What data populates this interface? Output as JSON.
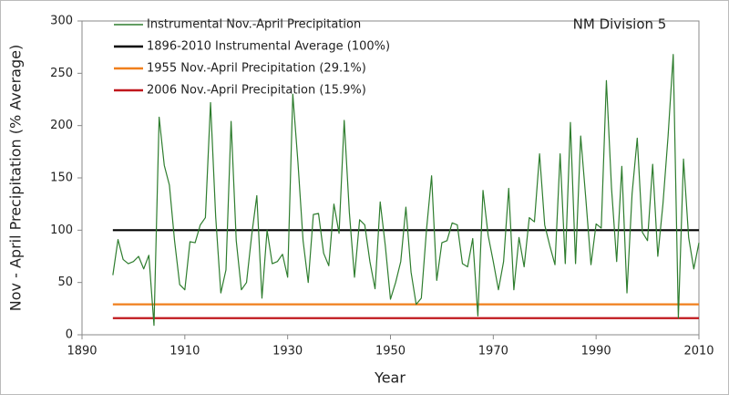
{
  "chart_data": {
    "type": "line",
    "annotation": "NM Division 5",
    "xlabel": "Year",
    "ylabel": "Nov - April Precipitation (% Average)",
    "xlim": [
      1890,
      2010
    ],
    "xticks": [
      1890,
      1910,
      1930,
      1950,
      1970,
      1990,
      2010
    ],
    "ylim": [
      0,
      300
    ],
    "yticks": [
      0,
      50,
      100,
      150,
      200,
      250,
      300
    ],
    "grid": false,
    "legend": "upper left",
    "series": [
      {
        "name": "Instrumental Nov.-April Precipitation",
        "color": "#2e7d2e",
        "x": [
          1896,
          1897,
          1898,
          1899,
          1900,
          1901,
          1902,
          1903,
          1904,
          1905,
          1906,
          1907,
          1908,
          1909,
          1910,
          1911,
          1912,
          1913,
          1914,
          1915,
          1916,
          1917,
          1918,
          1919,
          1920,
          1921,
          1922,
          1923,
          1924,
          1925,
          1926,
          1927,
          1928,
          1929,
          1930,
          1931,
          1932,
          1933,
          1934,
          1935,
          1936,
          1937,
          1938,
          1939,
          1940,
          1941,
          1942,
          1943,
          1944,
          1945,
          1946,
          1947,
          1948,
          1949,
          1950,
          1951,
          1952,
          1953,
          1954,
          1955,
          1956,
          1957,
          1958,
          1959,
          1960,
          1961,
          1962,
          1963,
          1964,
          1965,
          1966,
          1967,
          1968,
          1969,
          1970,
          1971,
          1972,
          1973,
          1974,
          1975,
          1976,
          1977,
          1978,
          1979,
          1980,
          1981,
          1982,
          1983,
          1984,
          1985,
          1986,
          1987,
          1988,
          1989,
          1990,
          1991,
          1992,
          1993,
          1994,
          1995,
          1996,
          1997,
          1998,
          1999,
          2000,
          2001,
          2002,
          2003,
          2004,
          2005,
          2006,
          2007,
          2008,
          2009,
          2010
        ],
        "values": [
          57,
          91,
          72,
          68,
          70,
          75,
          63,
          76,
          9,
          208,
          162,
          143,
          90,
          48,
          43,
          89,
          88,
          105,
          112,
          222,
          113,
          40,
          62,
          204,
          90,
          43,
          50,
          95,
          133,
          35,
          100,
          68,
          70,
          77,
          55,
          230,
          165,
          90,
          50,
          115,
          116,
          78,
          66,
          125,
          97,
          205,
          117,
          55,
          110,
          105,
          70,
          44,
          127,
          85,
          34,
          50,
          70,
          122,
          60,
          29.1,
          35,
          100,
          152,
          52,
          88,
          90,
          107,
          105,
          68,
          65,
          92,
          18,
          138,
          95,
          70,
          43,
          70,
          140,
          43,
          93,
          65,
          112,
          108,
          173,
          105,
          85,
          67,
          173,
          68,
          203,
          68,
          190,
          130,
          67,
          106,
          102,
          243,
          140,
          70,
          161,
          40,
          135,
          188,
          98,
          90,
          163,
          75,
          125,
          190,
          268,
          15.9,
          168,
          93,
          63,
          88
        ]
      },
      {
        "name": "1896-2010 Instrumental Average (100%)",
        "color": "#000000",
        "x": [
          1896,
          2010
        ],
        "values": [
          100,
          100
        ]
      },
      {
        "name": "1955 Nov.-April Precipitation (29.1%)",
        "color": "#f07f1c",
        "x": [
          1896,
          2010
        ],
        "values": [
          29.1,
          29.1
        ]
      },
      {
        "name": "2006 Nov.-April Precipitation (15.9%)",
        "color": "#c0171c",
        "x": [
          1896,
          2010
        ],
        "values": [
          15.9,
          15.9
        ]
      }
    ]
  }
}
